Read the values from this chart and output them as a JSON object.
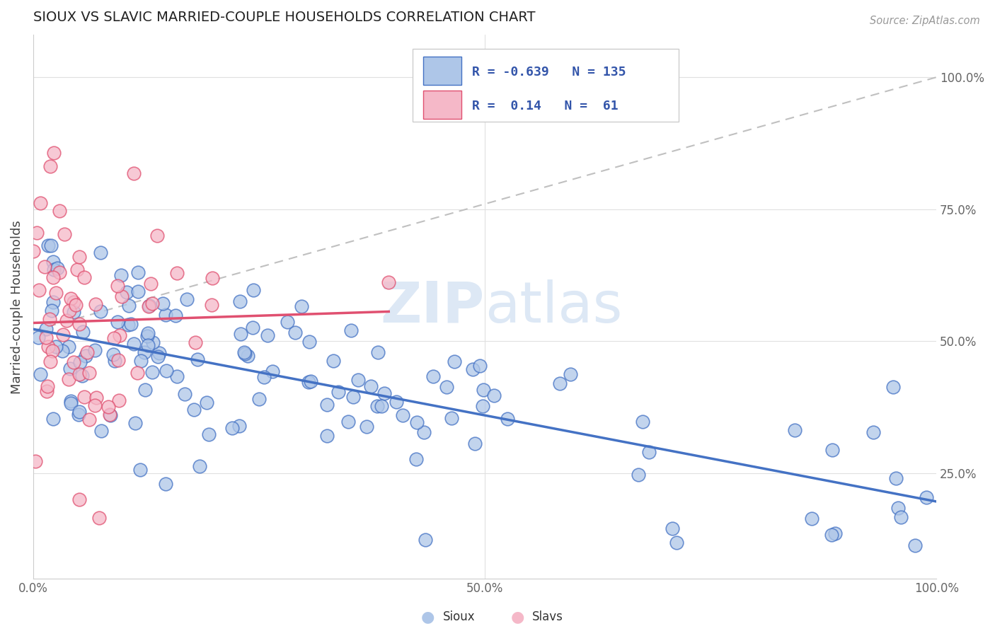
{
  "title": "SIOUX VS SLAVIC MARRIED-COUPLE HOUSEHOLDS CORRELATION CHART",
  "source": "Source: ZipAtlas.com",
  "ylabel": "Married-couple Households",
  "sioux_R": -0.639,
  "sioux_N": 135,
  "slavs_R": 0.14,
  "slavs_N": 61,
  "sioux_color": "#aec6e8",
  "slavs_color": "#f5b8c8",
  "sioux_line_color": "#4472c4",
  "slavs_line_color": "#e05070",
  "dashed_line_color": "#c0c0c0",
  "background_color": "#ffffff",
  "grid_color": "#e0e0e0",
  "title_color": "#222222",
  "legend_text_color": "#3355aa",
  "watermark_color": "#dde8f5",
  "xlim": [
    0.0,
    1.0
  ],
  "ylim": [
    0.05,
    1.08
  ],
  "yticks": [
    0.25,
    0.5,
    0.75,
    1.0
  ],
  "ytick_labels": [
    "25.0%",
    "50.0%",
    "75.0%",
    "100.0%"
  ],
  "xticks": [
    0.0,
    0.5,
    1.0
  ],
  "xtick_labels": [
    "0.0%",
    "50.0%",
    "100.0%"
  ]
}
